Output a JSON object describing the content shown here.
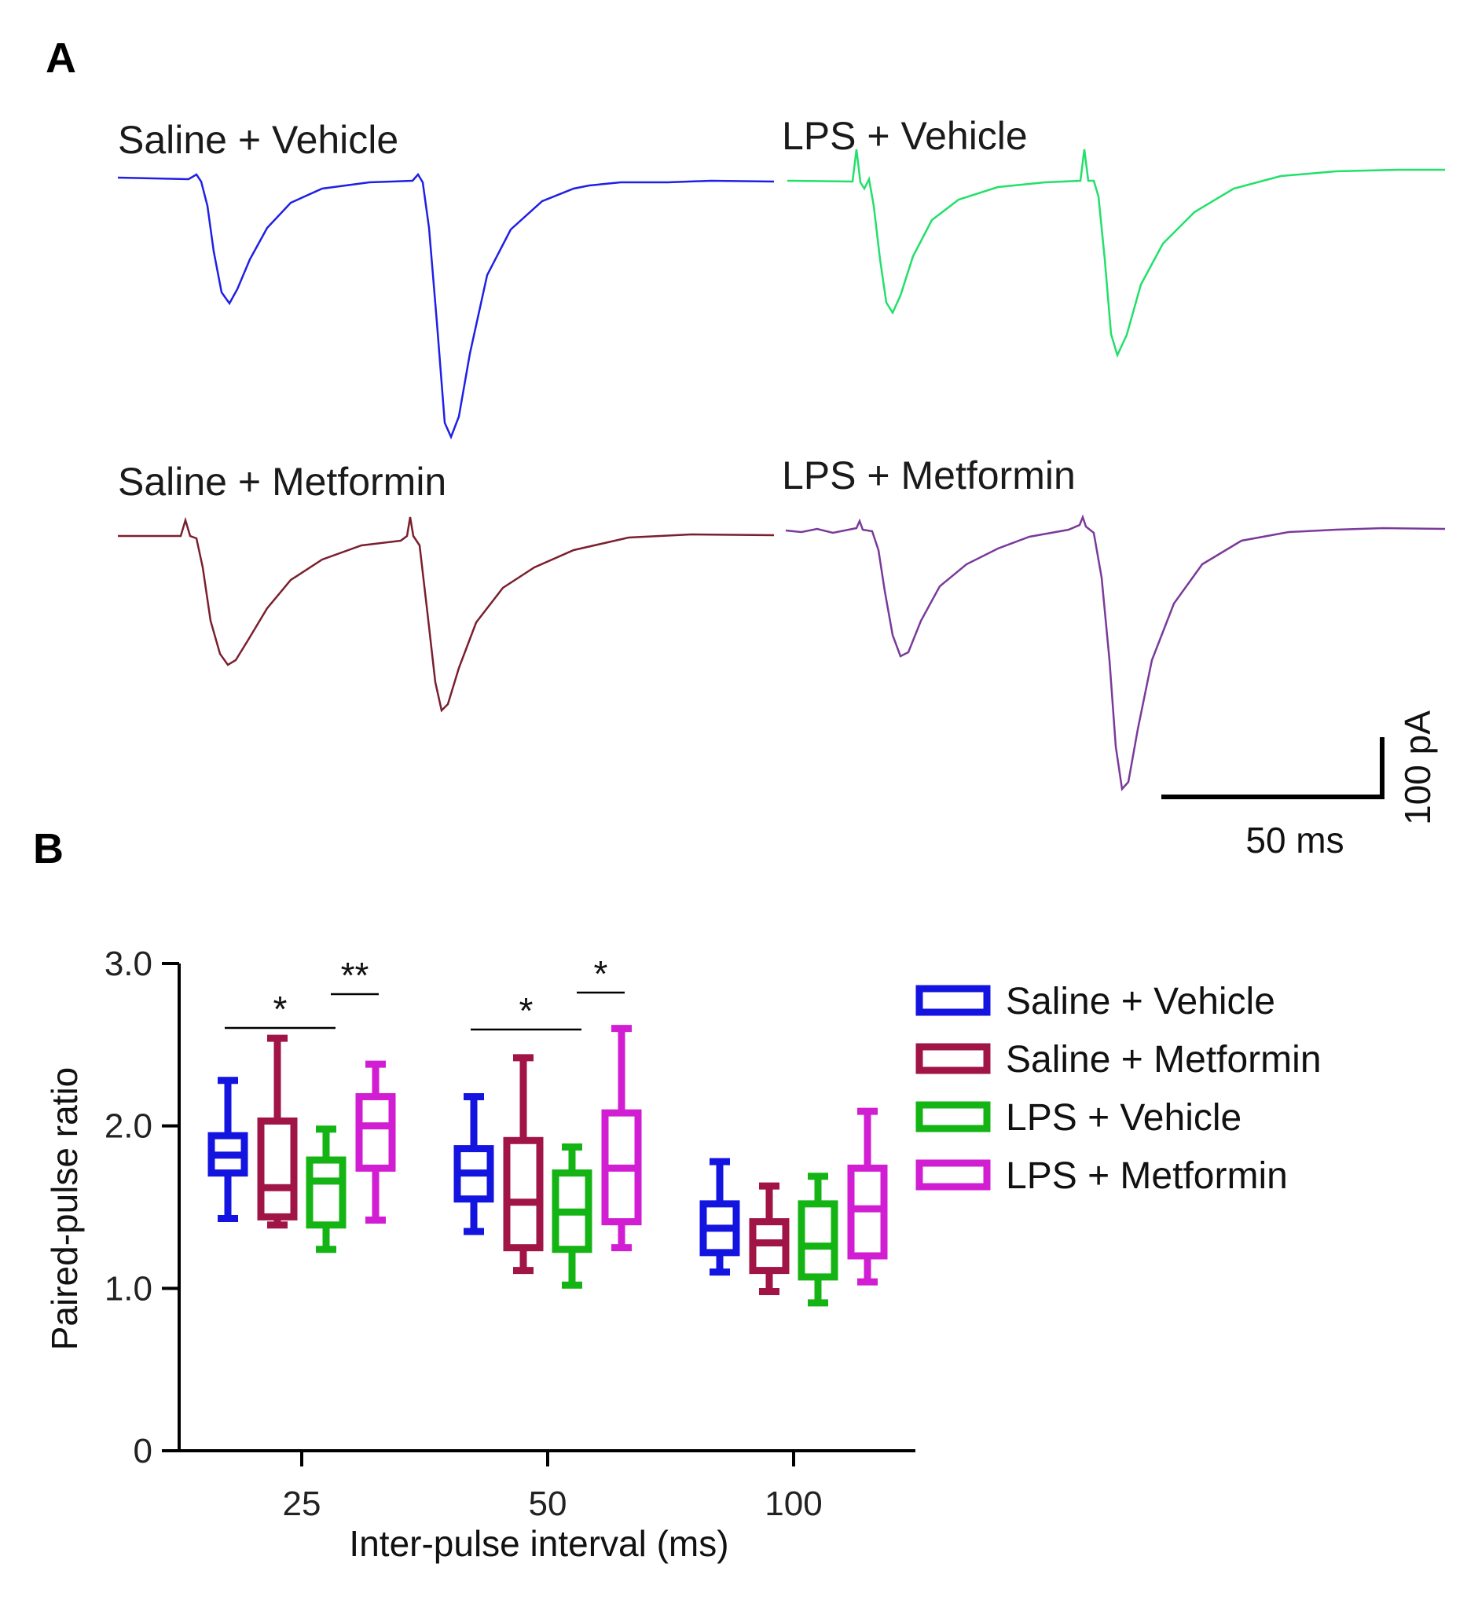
{
  "panel_a": {
    "letter": "A",
    "traces": [
      {
        "label": "Saline + Vehicle",
        "color": "#1f1fe6"
      },
      {
        "label": "LPS + Vehicle",
        "color": "#22e06a"
      },
      {
        "label": "Saline + Metformin",
        "color": "#7a1f2e"
      },
      {
        "label": "LPS + Metformin",
        "color": "#7a3a9a"
      }
    ],
    "scale_bar": {
      "time_label": "50 ms",
      "current_label": "100 pA"
    }
  },
  "panel_b": {
    "letter": "B",
    "chart_data": {
      "type": "box",
      "xlabel": "Inter-pulse interval (ms)",
      "ylabel": "Paired-pulse ratio",
      "categories": [
        "25",
        "50",
        "100"
      ],
      "ylim": [
        0,
        3.0
      ],
      "yticks": [
        "0",
        "1.0",
        "2.0",
        "3.0"
      ],
      "legend_position": "top-right",
      "series": [
        {
          "name": "Saline + Vehicle",
          "color": "#1414e0",
          "boxes": [
            {
              "min": 1.43,
              "q1": 1.71,
              "median": 1.82,
              "q3": 1.94,
              "max": 2.28
            },
            {
              "min": 1.35,
              "q1": 1.55,
              "median": 1.71,
              "q3": 1.86,
              "max": 2.18
            },
            {
              "min": 1.1,
              "q1": 1.22,
              "median": 1.37,
              "q3": 1.52,
              "max": 1.78
            }
          ]
        },
        {
          "name": "Saline + Metformin",
          "color": "#a01446",
          "boxes": [
            {
              "min": 1.39,
              "q1": 1.44,
              "median": 1.62,
              "q3": 2.03,
              "max": 2.54
            },
            {
              "min": 1.11,
              "q1": 1.25,
              "median": 1.53,
              "q3": 1.91,
              "max": 2.42
            },
            {
              "min": 0.98,
              "q1": 1.11,
              "median": 1.28,
              "q3": 1.41,
              "max": 1.63
            }
          ]
        },
        {
          "name": "LPS + Vehicle",
          "color": "#14b414",
          "boxes": [
            {
              "min": 1.24,
              "q1": 1.39,
              "median": 1.66,
              "q3": 1.79,
              "max": 1.98
            },
            {
              "min": 1.02,
              "q1": 1.24,
              "median": 1.47,
              "q3": 1.71,
              "max": 1.87
            },
            {
              "min": 0.91,
              "q1": 1.07,
              "median": 1.26,
              "q3": 1.52,
              "max": 1.69
            }
          ]
        },
        {
          "name": "LPS + Metformin",
          "color": "#d21ed2",
          "boxes": [
            {
              "min": 1.42,
              "q1": 1.74,
              "median": 2.0,
              "q3": 2.18,
              "max": 2.38
            },
            {
              "min": 1.25,
              "q1": 1.41,
              "median": 1.74,
              "q3": 2.08,
              "max": 2.6
            },
            {
              "min": 1.04,
              "q1": 1.2,
              "median": 1.49,
              "q3": 1.74,
              "max": 2.09
            }
          ]
        }
      ],
      "significance": [
        {
          "label": "*",
          "category": "25",
          "from_series": "Saline + Vehicle",
          "to_series": "LPS + Vehicle"
        },
        {
          "label": "**",
          "category": "25",
          "from_series": "LPS + Vehicle",
          "to_series": "LPS + Metformin"
        },
        {
          "label": "*",
          "category": "50",
          "from_series": "Saline + Vehicle",
          "to_series": "LPS + Vehicle"
        },
        {
          "label": "*",
          "category": "50",
          "from_series": "LPS + Vehicle",
          "to_series": "LPS + Metformin"
        }
      ]
    }
  }
}
